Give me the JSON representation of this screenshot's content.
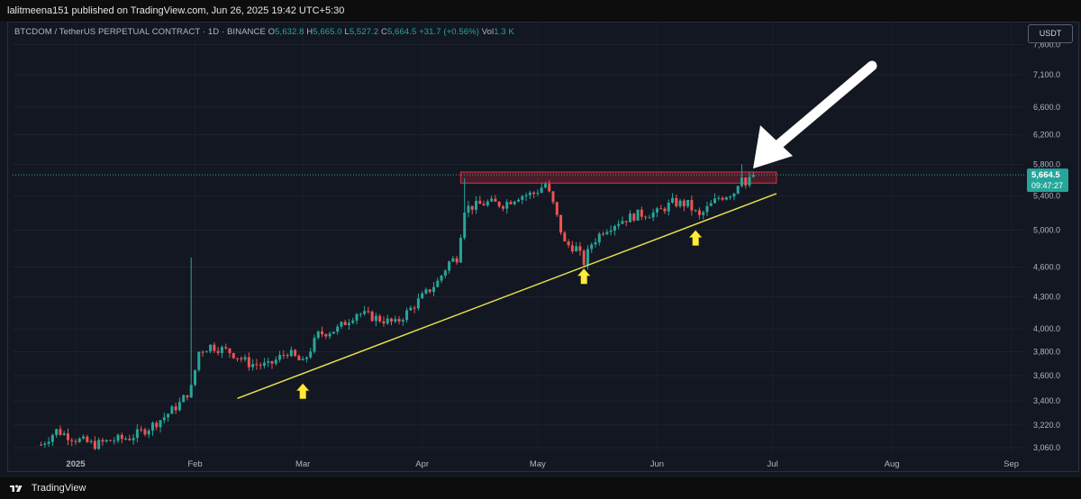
{
  "header": {
    "published": "lalitmeena151 published on TradingView.com, Jun 26, 2025 19:42 UTC+5:30"
  },
  "legend": {
    "symbol": "BTCDOM / TetherUS PERPETUAL CONTRACT · 1D · BINANCE",
    "o_label": "O",
    "o_value": "5,632.8",
    "h_label": "H",
    "h_value": "5,665.0",
    "l_label": "L",
    "l_value": "5,527.2",
    "c_label": "C",
    "c_value": "5,664.5 +31.7 (+0.56%)",
    "vol_label": "Vol",
    "vol_value": "1.3 K"
  },
  "currency_button": "USDT",
  "price_tag": {
    "price": "5,664.5",
    "countdown": "09:47:27"
  },
  "footer": {
    "brand": "TradingView"
  },
  "colors": {
    "up": "#26a69a",
    "down": "#ef5350",
    "trendline": "#e8e04f",
    "arrow_markers": "#ffeb3b",
    "resistance": "#b2283a",
    "price_tag": "#26a69a"
  },
  "chart_data": {
    "type": "candlestick",
    "interval": "1D",
    "y_scale": "log",
    "ylim": [
      3000,
      7800
    ],
    "y_ticks": [
      "3,060.0",
      "3,220.0",
      "3,400.0",
      "3,600.0",
      "3,800.0",
      "4,000.0",
      "4,300.0",
      "4,600.0",
      "5,000.0",
      "5,400.0",
      "5,800.0",
      "6,200.0",
      "6,600.0",
      "7,100.0",
      "7,600.0"
    ],
    "x_ticks": [
      "2025",
      "Feb",
      "Mar",
      "Apr",
      "May",
      "Jun",
      "Jul",
      "Aug",
      "Sep"
    ],
    "last_price": 5664.5,
    "close_path": [
      {
        "date": "2024-12-23",
        "close": 3080
      },
      {
        "date": "2024-12-27",
        "close": 3180
      },
      {
        "date": "2025-01-01",
        "close": 3120
      },
      {
        "date": "2025-01-06",
        "close": 3080
      },
      {
        "date": "2025-01-10",
        "close": 3110
      },
      {
        "date": "2025-01-15",
        "close": 3130
      },
      {
        "date": "2025-01-20",
        "close": 3200
      },
      {
        "date": "2025-01-24",
        "close": 3280
      },
      {
        "date": "2025-01-28",
        "close": 3380
      },
      {
        "date": "2025-01-31",
        "close": 3500
      },
      {
        "date": "2025-02-02",
        "close": 3800
      },
      {
        "date": "2025-02-05",
        "close": 3850
      },
      {
        "date": "2025-02-10",
        "close": 3800
      },
      {
        "date": "2025-02-15",
        "close": 3700
      },
      {
        "date": "2025-02-20",
        "close": 3680
      },
      {
        "date": "2025-02-25",
        "close": 3800
      },
      {
        "date": "2025-03-01",
        "close": 3700
      },
      {
        "date": "2025-03-05",
        "close": 3950
      },
      {
        "date": "2025-03-10",
        "close": 4000
      },
      {
        "date": "2025-03-15",
        "close": 4150
      },
      {
        "date": "2025-03-20",
        "close": 4100
      },
      {
        "date": "2025-03-25",
        "close": 4050
      },
      {
        "date": "2025-03-28",
        "close": 4150
      },
      {
        "date": "2025-04-01",
        "close": 4300
      },
      {
        "date": "2025-04-05",
        "close": 4450
      },
      {
        "date": "2025-04-08",
        "close": 4650
      },
      {
        "date": "2025-04-10",
        "close": 4700
      },
      {
        "date": "2025-04-12",
        "close": 5250
      },
      {
        "date": "2025-04-18",
        "close": 5320
      },
      {
        "date": "2025-04-22",
        "close": 5300
      },
      {
        "date": "2025-04-26",
        "close": 5400
      },
      {
        "date": "2025-04-30",
        "close": 5430
      },
      {
        "date": "2025-05-03",
        "close": 5550
      },
      {
        "date": "2025-05-05",
        "close": 5300
      },
      {
        "date": "2025-05-08",
        "close": 4850
      },
      {
        "date": "2025-05-11",
        "close": 4800
      },
      {
        "date": "2025-05-13",
        "close": 4650
      },
      {
        "date": "2025-05-15",
        "close": 4850
      },
      {
        "date": "2025-05-18",
        "close": 5000
      },
      {
        "date": "2025-05-22",
        "close": 5100
      },
      {
        "date": "2025-05-27",
        "close": 5180
      },
      {
        "date": "2025-06-01",
        "close": 5200
      },
      {
        "date": "2025-06-05",
        "close": 5320
      },
      {
        "date": "2025-06-09",
        "close": 5300
      },
      {
        "date": "2025-06-12",
        "close": 5150
      },
      {
        "date": "2025-06-14",
        "close": 5250
      },
      {
        "date": "2025-06-17",
        "close": 5380
      },
      {
        "date": "2025-06-21",
        "close": 5450
      },
      {
        "date": "2025-06-23",
        "close": 5680
      },
      {
        "date": "2025-06-24",
        "close": 5530
      },
      {
        "date": "2025-06-26",
        "close": 5664.5
      }
    ],
    "wick_highs": [
      {
        "date": "2025-01-31",
        "high": 4700
      },
      {
        "date": "2025-04-12",
        "high": 5620
      },
      {
        "date": "2025-06-23",
        "high": 5800
      }
    ],
    "trendline": {
      "from": {
        "date": "2025-02-12",
        "price": 3420
      },
      "to": {
        "date": "2025-07-02",
        "price": 5430
      }
    },
    "resistance_zone": {
      "from": "2025-04-11",
      "to": "2025-07-02",
      "low": 5560,
      "high": 5700
    },
    "support_markers": [
      {
        "date": "2025-03-01",
        "price": 3580
      },
      {
        "date": "2025-05-13",
        "price": 4640
      },
      {
        "date": "2025-06-11",
        "price": 5060
      }
    ],
    "callout_arrow": {
      "points_to": {
        "date": "2025-06-25",
        "price": 5780
      }
    }
  }
}
